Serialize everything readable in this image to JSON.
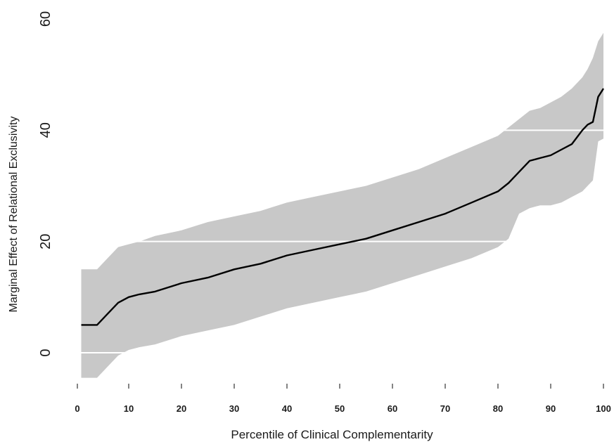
{
  "chart_data": {
    "type": "line",
    "title": "",
    "xlabel": "Percentile of Clinical Complementarity",
    "ylabel": "Marginal Effect of Relational Exclusivity",
    "xlim": [
      0,
      101
    ],
    "ylim": [
      -8,
      63
    ],
    "x_ticks": [
      "0",
      "10",
      "20",
      "30",
      "40",
      "50",
      "60",
      "70",
      "80",
      "90",
      "100"
    ],
    "y_ticks": [
      "0",
      "20",
      "40",
      "60"
    ],
    "horizontal_grid": true,
    "grid_y": [
      0,
      20,
      40,
      60
    ],
    "colors": {
      "band": "#c8c8c8",
      "line": "#000000",
      "grid": "#ffffff"
    },
    "series": [
      {
        "x": [
          1,
          4,
          6,
          8,
          10,
          12,
          15,
          20,
          25,
          30,
          35,
          40,
          45,
          50,
          55,
          60,
          65,
          70,
          75,
          80,
          82,
          84,
          86,
          88,
          90,
          92,
          94,
          96,
          97,
          98,
          99,
          100
        ],
        "y": [
          5,
          5,
          7,
          9,
          10,
          10.5,
          11,
          12.5,
          13.5,
          15,
          16,
          17.5,
          18.5,
          19.5,
          20.5,
          22,
          23.5,
          25,
          27,
          29,
          30.5,
          32.5,
          34.5,
          35,
          35.5,
          36.5,
          37.5,
          40,
          41,
          41.5,
          46,
          47.5
        ],
        "lower": [
          -4.5,
          -4.5,
          -2.5,
          -0.5,
          0.5,
          1,
          1.5,
          3,
          4,
          5,
          6.5,
          8,
          9,
          10,
          11,
          12.5,
          14,
          15.5,
          17,
          19,
          20.5,
          25,
          26,
          26.5,
          26.5,
          27,
          28,
          29,
          30,
          31,
          38,
          38.5
        ],
        "upper": [
          15,
          15,
          17,
          19,
          19.5,
          20,
          21,
          22,
          23.5,
          24.5,
          25.5,
          27,
          28,
          29,
          30,
          31.5,
          33,
          35,
          37,
          39,
          40.5,
          42,
          43.5,
          44,
          45,
          46,
          47.5,
          49.5,
          51,
          53,
          56,
          57.5
        ]
      }
    ]
  }
}
